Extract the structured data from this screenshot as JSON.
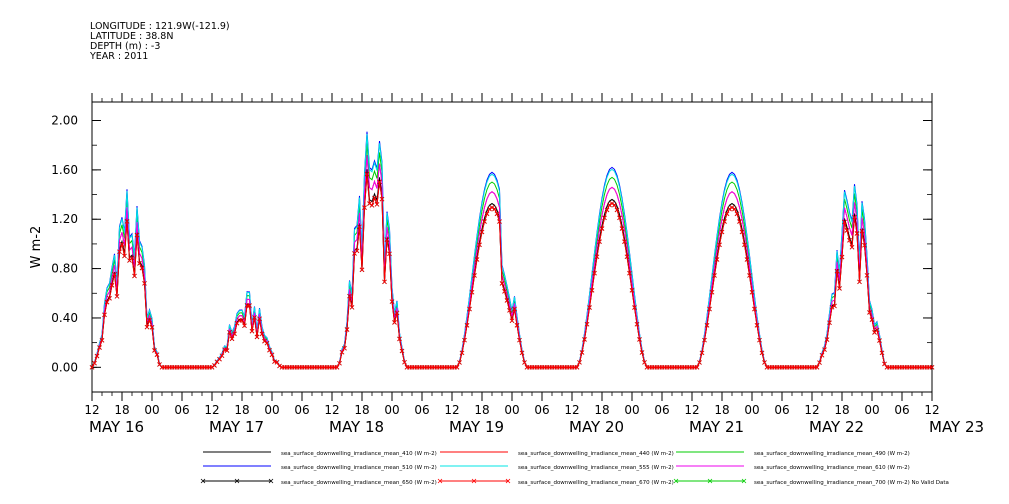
{
  "header": {
    "longitude": "LONGITUDE : 121.9W(-121.9)",
    "latitude": "LATITUDE : 38.8N",
    "depth": "DEPTH (m) : -3",
    "year": "YEAR : 2011"
  },
  "chart_data": {
    "type": "line",
    "title": "",
    "xlabel": "",
    "ylabel": "W m-2",
    "ylim": [
      -0.2,
      2.15
    ],
    "xlim": [
      "2011-05-16T12:00",
      "2011-05-23T12:00"
    ],
    "grid": false,
    "legend_position": "bottom",
    "y_ticks": [
      "0.00",
      "0.40",
      "0.80",
      "1.20",
      "1.60",
      "2.00"
    ],
    "x_hour_ticks": [
      "12",
      "18",
      "00",
      "06",
      "12",
      "18",
      "00",
      "06",
      "12",
      "18",
      "00",
      "06",
      "12",
      "18",
      "00",
      "06",
      "12",
      "18",
      "00",
      "06",
      "12",
      "18",
      "00",
      "06",
      "12",
      "18",
      "00",
      "06",
      "12"
    ],
    "x_day_labels": [
      {
        "label": "MAY 16",
        "at": "2011-05-16T12:00"
      },
      {
        "label": "MAY 17",
        "at": "2011-05-17T12:00"
      },
      {
        "label": "MAY 18",
        "at": "2011-05-18T12:00"
      },
      {
        "label": "MAY 19",
        "at": "2011-05-19T12:00"
      },
      {
        "label": "MAY 20",
        "at": "2011-05-20T12:00"
      },
      {
        "label": "MAY 21",
        "at": "2011-05-21T12:00"
      },
      {
        "label": "MAY 22",
        "at": "2011-05-22T12:00"
      },
      {
        "label": "MAY 23",
        "at": "2011-05-23T12:00"
      }
    ],
    "daily_peaks": [
      {
        "day": "2011-05-16",
        "peak_time": "2011-05-16T19:00",
        "peak": 1.48,
        "shape": "noisy"
      },
      {
        "day": "2011-05-17",
        "peak_time": "2011-05-17T19:00",
        "peak": 0.6,
        "shape": "noisy"
      },
      {
        "day": "2011-05-18",
        "peak_time": "2011-05-18T20:00",
        "peak": 1.95,
        "shape": "noisy"
      },
      {
        "day": "2011-05-19",
        "peak_time": "2011-05-19T20:00",
        "peak": 1.58,
        "shape": "dip"
      },
      {
        "day": "2011-05-20",
        "peak_time": "2011-05-20T20:00",
        "peak": 1.62,
        "shape": "smooth"
      },
      {
        "day": "2011-05-21",
        "peak_time": "2011-05-21T20:00",
        "peak": 1.58,
        "shape": "smooth"
      },
      {
        "day": "2011-05-22",
        "peak_time": "2011-05-22T20:00",
        "peak": 1.55,
        "shape": "noisy"
      }
    ],
    "series": [
      {
        "name": "sea_surface_downwelling_irradiance_mean_410 (W m-2)",
        "color": "#000000",
        "scale": 0.84,
        "marker": "none"
      },
      {
        "name": "sea_surface_downwelling_irradiance_mean_440 (W m-2)",
        "color": "#ff0000",
        "scale": 0.9,
        "marker": "none"
      },
      {
        "name": "sea_surface_downwelling_irradiance_mean_490 (W m-2)",
        "color": "#00cc00",
        "scale": 0.95,
        "marker": "none"
      },
      {
        "name": "sea_surface_downwelling_irradiance_mean_510 (W m-2)",
        "color": "#0000ff",
        "scale": 1.0,
        "marker": "none"
      },
      {
        "name": "sea_surface_downwelling_irradiance_mean_555 (W m-2)",
        "color": "#00e5e5",
        "scale": 0.99,
        "marker": "none"
      },
      {
        "name": "sea_surface_downwelling_irradiance_mean_610 (W m-2)",
        "color": "#ee00ee",
        "scale": 0.9,
        "marker": "none"
      },
      {
        "name": "sea_surface_downwelling_irradiance_mean_650 (W m-2)",
        "color": "#000000",
        "scale": 0.82,
        "marker": "x"
      },
      {
        "name": "sea_surface_downwelling_irradiance_mean_670 (W m-2)",
        "color": "#ff0000",
        "scale": 0.82,
        "marker": "x"
      },
      {
        "name": "sea_surface_downwelling_irradiance_mean_700 (W m-2) No Valid Data",
        "color": "#00cc00",
        "scale": 0,
        "marker": "x"
      }
    ]
  }
}
